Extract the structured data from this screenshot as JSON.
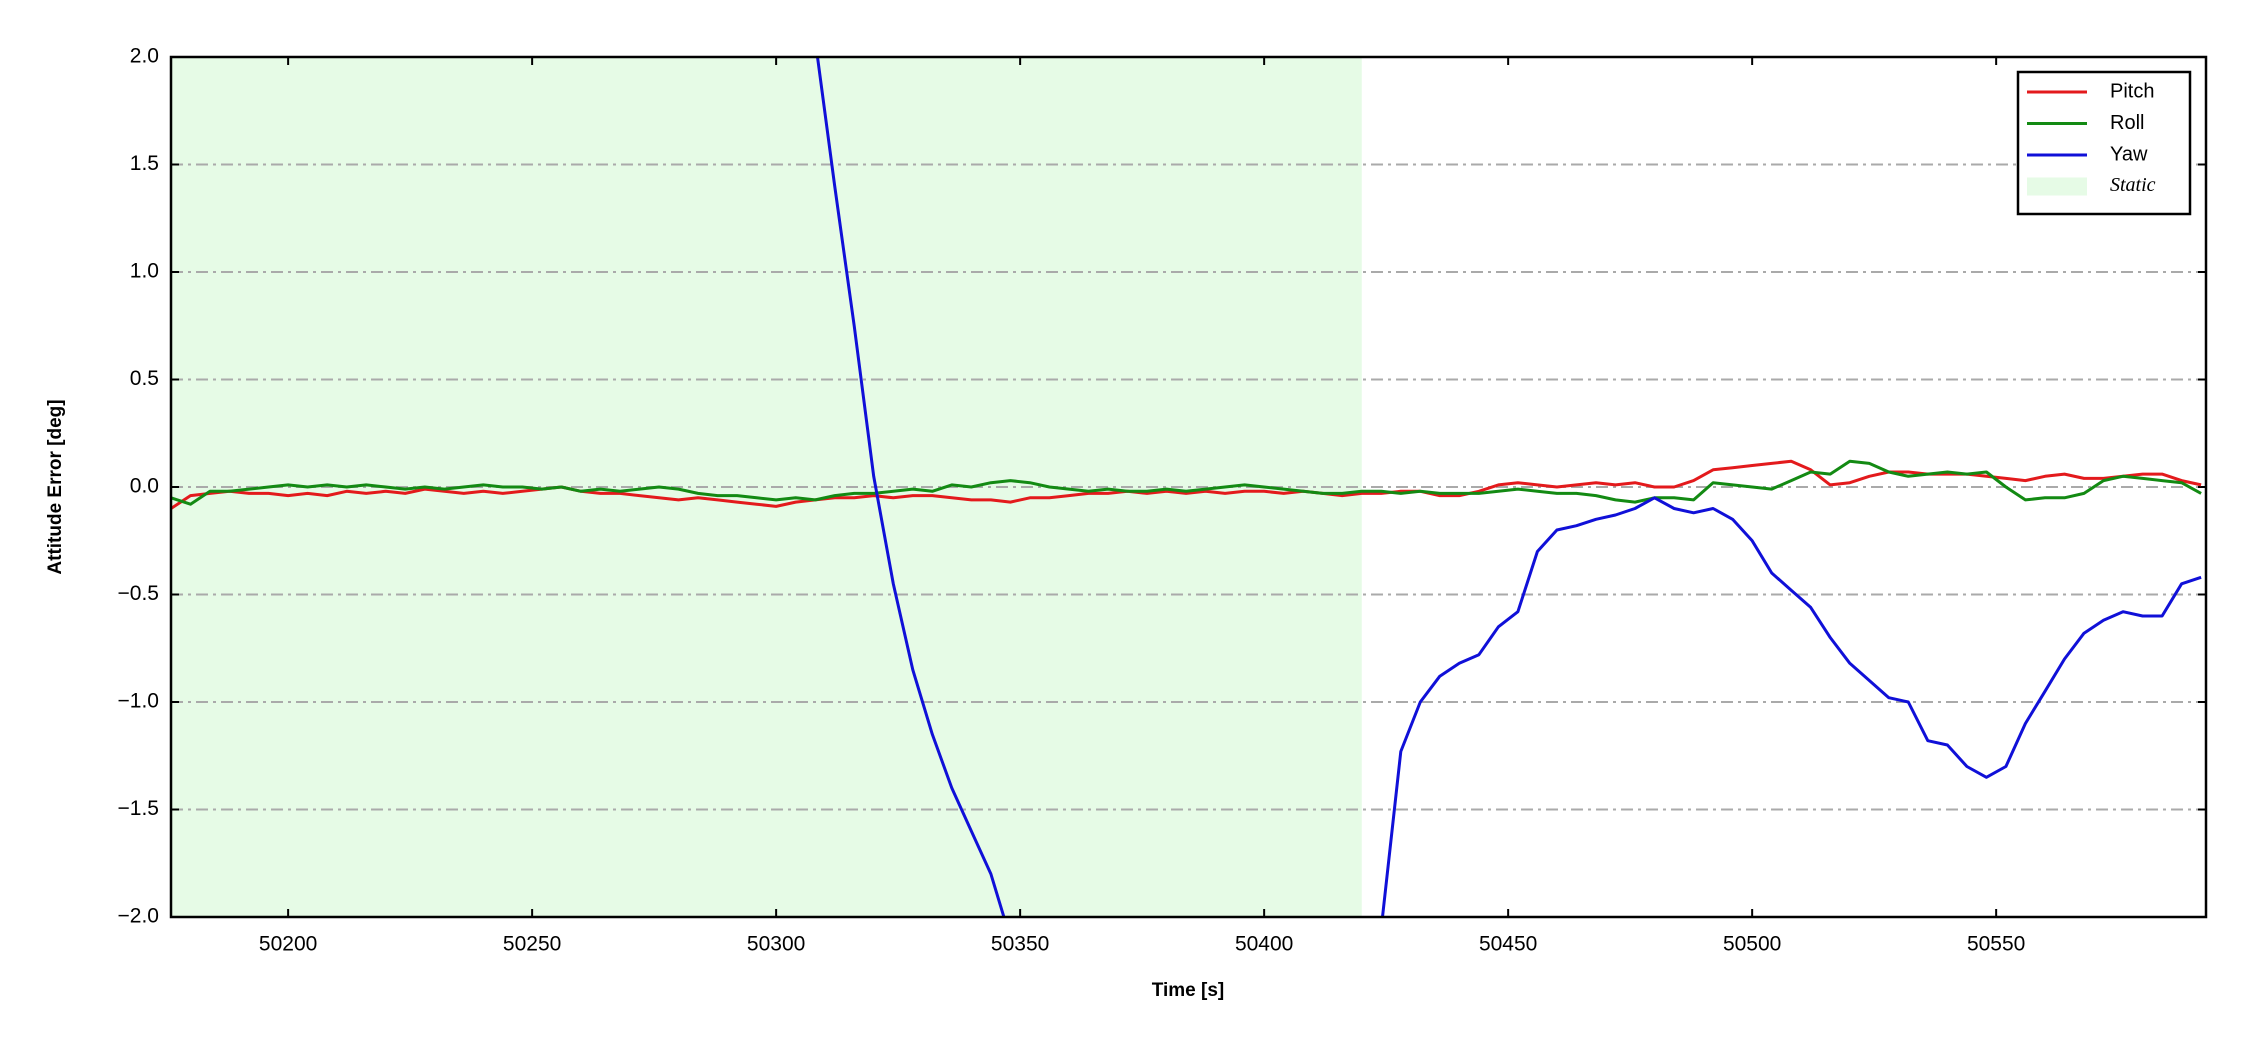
{
  "chart_data": {
    "type": "line",
    "xlabel": "Time [s]",
    "ylabel": "Attitude Error [deg]",
    "xlim": [
      50176,
      50593
    ],
    "ylim": [
      -2.0,
      2.0
    ],
    "xticks": [
      50200,
      50250,
      50300,
      50350,
      50400,
      50450,
      50500,
      50550
    ],
    "yticks": [
      {
        "value": -2.0,
        "label": "−2.0"
      },
      {
        "value": -1.5,
        "label": "−1.5"
      },
      {
        "value": -1.0,
        "label": "−1.0"
      },
      {
        "value": -0.5,
        "label": "−0.5"
      },
      {
        "value": 0.0,
        "label": "0.0"
      },
      {
        "value": 0.5,
        "label": "0.5"
      },
      {
        "value": 1.0,
        "label": "1.0"
      },
      {
        "value": 1.5,
        "label": "1.5"
      },
      {
        "value": 2.0,
        "label": "2.0"
      }
    ],
    "grid": "y",
    "legend": "upper right",
    "shaded_region": {
      "name": "Static",
      "color": "#e6fbe6",
      "x": [
        50176,
        50420
      ]
    },
    "x": [
      50176,
      50180,
      50184,
      50188,
      50192,
      50196,
      50200,
      50204,
      50208,
      50212,
      50216,
      50220,
      50224,
      50228,
      50232,
      50236,
      50240,
      50244,
      50248,
      50252,
      50256,
      50260,
      50264,
      50268,
      50272,
      50276,
      50280,
      50284,
      50288,
      50292,
      50296,
      50300,
      50304,
      50308,
      50312,
      50316,
      50320,
      50324,
      50328,
      50332,
      50336,
      50340,
      50344,
      50348,
      50352,
      50356,
      50360,
      50364,
      50368,
      50372,
      50376,
      50380,
      50384,
      50388,
      50392,
      50396,
      50400,
      50404,
      50408,
      50412,
      50416,
      50420,
      50424,
      50428,
      50432,
      50436,
      50440,
      50444,
      50448,
      50452,
      50456,
      50460,
      50464,
      50468,
      50472,
      50476,
      50480,
      50484,
      50488,
      50492,
      50496,
      50500,
      50504,
      50508,
      50512,
      50516,
      50520,
      50524,
      50528,
      50532,
      50536,
      50540,
      50544,
      50548,
      50552,
      50556,
      50560,
      50564,
      50568,
      50572,
      50576,
      50580,
      50584,
      50588,
      50592
    ],
    "series": [
      {
        "name": "Pitch",
        "color": "#e31a1c",
        "values": [
          -0.1,
          -0.04,
          -0.03,
          -0.02,
          -0.03,
          -0.03,
          -0.04,
          -0.03,
          -0.04,
          -0.02,
          -0.03,
          -0.02,
          -0.03,
          -0.01,
          -0.02,
          -0.03,
          -0.02,
          -0.03,
          -0.02,
          -0.01,
          0.0,
          -0.02,
          -0.03,
          -0.03,
          -0.04,
          -0.05,
          -0.06,
          -0.05,
          -0.06,
          -0.07,
          -0.08,
          -0.09,
          -0.07,
          -0.06,
          -0.05,
          -0.05,
          -0.04,
          -0.05,
          -0.04,
          -0.04,
          -0.05,
          -0.06,
          -0.06,
          -0.07,
          -0.05,
          -0.05,
          -0.04,
          -0.03,
          -0.03,
          -0.02,
          -0.03,
          -0.02,
          -0.03,
          -0.02,
          -0.03,
          -0.02,
          -0.02,
          -0.03,
          -0.02,
          -0.03,
          -0.04,
          -0.03,
          -0.03,
          -0.02,
          -0.02,
          -0.04,
          -0.04,
          -0.02,
          0.01,
          0.02,
          0.01,
          0.0,
          0.01,
          0.02,
          0.01,
          0.02,
          0.0,
          0.0,
          0.03,
          0.08,
          0.09,
          0.1,
          0.11,
          0.12,
          0.08,
          0.01,
          0.02,
          0.05,
          0.07,
          0.07,
          0.06,
          0.06,
          0.06,
          0.05,
          0.04,
          0.03,
          0.05,
          0.06,
          0.04,
          0.04,
          0.05,
          0.06,
          0.06,
          0.03,
          0.01
        ]
      },
      {
        "name": "Roll",
        "color": "#138a13",
        "values": [
          -0.05,
          -0.08,
          -0.02,
          -0.02,
          -0.01,
          0.0,
          0.01,
          0.0,
          0.01,
          0.0,
          0.01,
          0.0,
          -0.01,
          0.0,
          -0.01,
          0.0,
          0.01,
          0.0,
          0.0,
          -0.01,
          0.0,
          -0.02,
          -0.01,
          -0.02,
          -0.01,
          0.0,
          -0.01,
          -0.03,
          -0.04,
          -0.04,
          -0.05,
          -0.06,
          -0.05,
          -0.06,
          -0.04,
          -0.03,
          -0.03,
          -0.02,
          -0.01,
          -0.02,
          0.01,
          0.0,
          0.02,
          0.03,
          0.02,
          0.0,
          -0.01,
          -0.02,
          -0.01,
          -0.02,
          -0.02,
          -0.01,
          -0.02,
          -0.01,
          0.0,
          0.01,
          0.0,
          -0.01,
          -0.02,
          -0.03,
          -0.03,
          -0.02,
          -0.02,
          -0.03,
          -0.02,
          -0.03,
          -0.03,
          -0.03,
          -0.02,
          -0.01,
          -0.02,
          -0.03,
          -0.03,
          -0.04,
          -0.06,
          -0.07,
          -0.05,
          -0.05,
          -0.06,
          0.02,
          0.01,
          0.0,
          -0.01,
          0.03,
          0.07,
          0.06,
          0.12,
          0.11,
          0.07,
          0.05,
          0.06,
          0.07,
          0.06,
          0.07,
          0.0,
          -0.06,
          -0.05,
          -0.05,
          -0.03,
          0.03,
          0.05,
          0.04,
          0.03,
          0.02,
          -0.03
        ]
      },
      {
        "name": "Yaw",
        "color": "#1010d8",
        "values": [
          null,
          null,
          null,
          null,
          null,
          null,
          null,
          null,
          null,
          null,
          null,
          null,
          null,
          null,
          null,
          null,
          null,
          null,
          null,
          null,
          null,
          null,
          null,
          null,
          null,
          null,
          null,
          null,
          null,
          null,
          null,
          null,
          2.75,
          2.08,
          1.4,
          0.75,
          0.05,
          -0.45,
          -0.85,
          -1.15,
          -1.4,
          -1.6,
          -1.8,
          -2.1,
          null,
          null,
          null,
          null,
          null,
          null,
          null,
          null,
          null,
          null,
          null,
          null,
          null,
          null,
          null,
          null,
          null,
          null,
          -2.05,
          -1.23,
          -1.0,
          -0.88,
          -0.82,
          -0.78,
          -0.65,
          -0.58,
          -0.3,
          -0.2,
          -0.18,
          -0.15,
          -0.13,
          -0.1,
          -0.05,
          -0.1,
          -0.12,
          -0.1,
          -0.15,
          -0.25,
          -0.4,
          -0.48,
          -0.56,
          -0.7,
          -0.82,
          -0.9,
          -0.98,
          -1.0,
          -1.18,
          -1.2,
          -1.3,
          -1.35,
          -1.3,
          -1.1,
          -0.95,
          -0.8,
          -0.68,
          -0.62,
          -0.58,
          -0.6,
          -0.6,
          -0.45,
          -0.42
        ]
      }
    ]
  }
}
